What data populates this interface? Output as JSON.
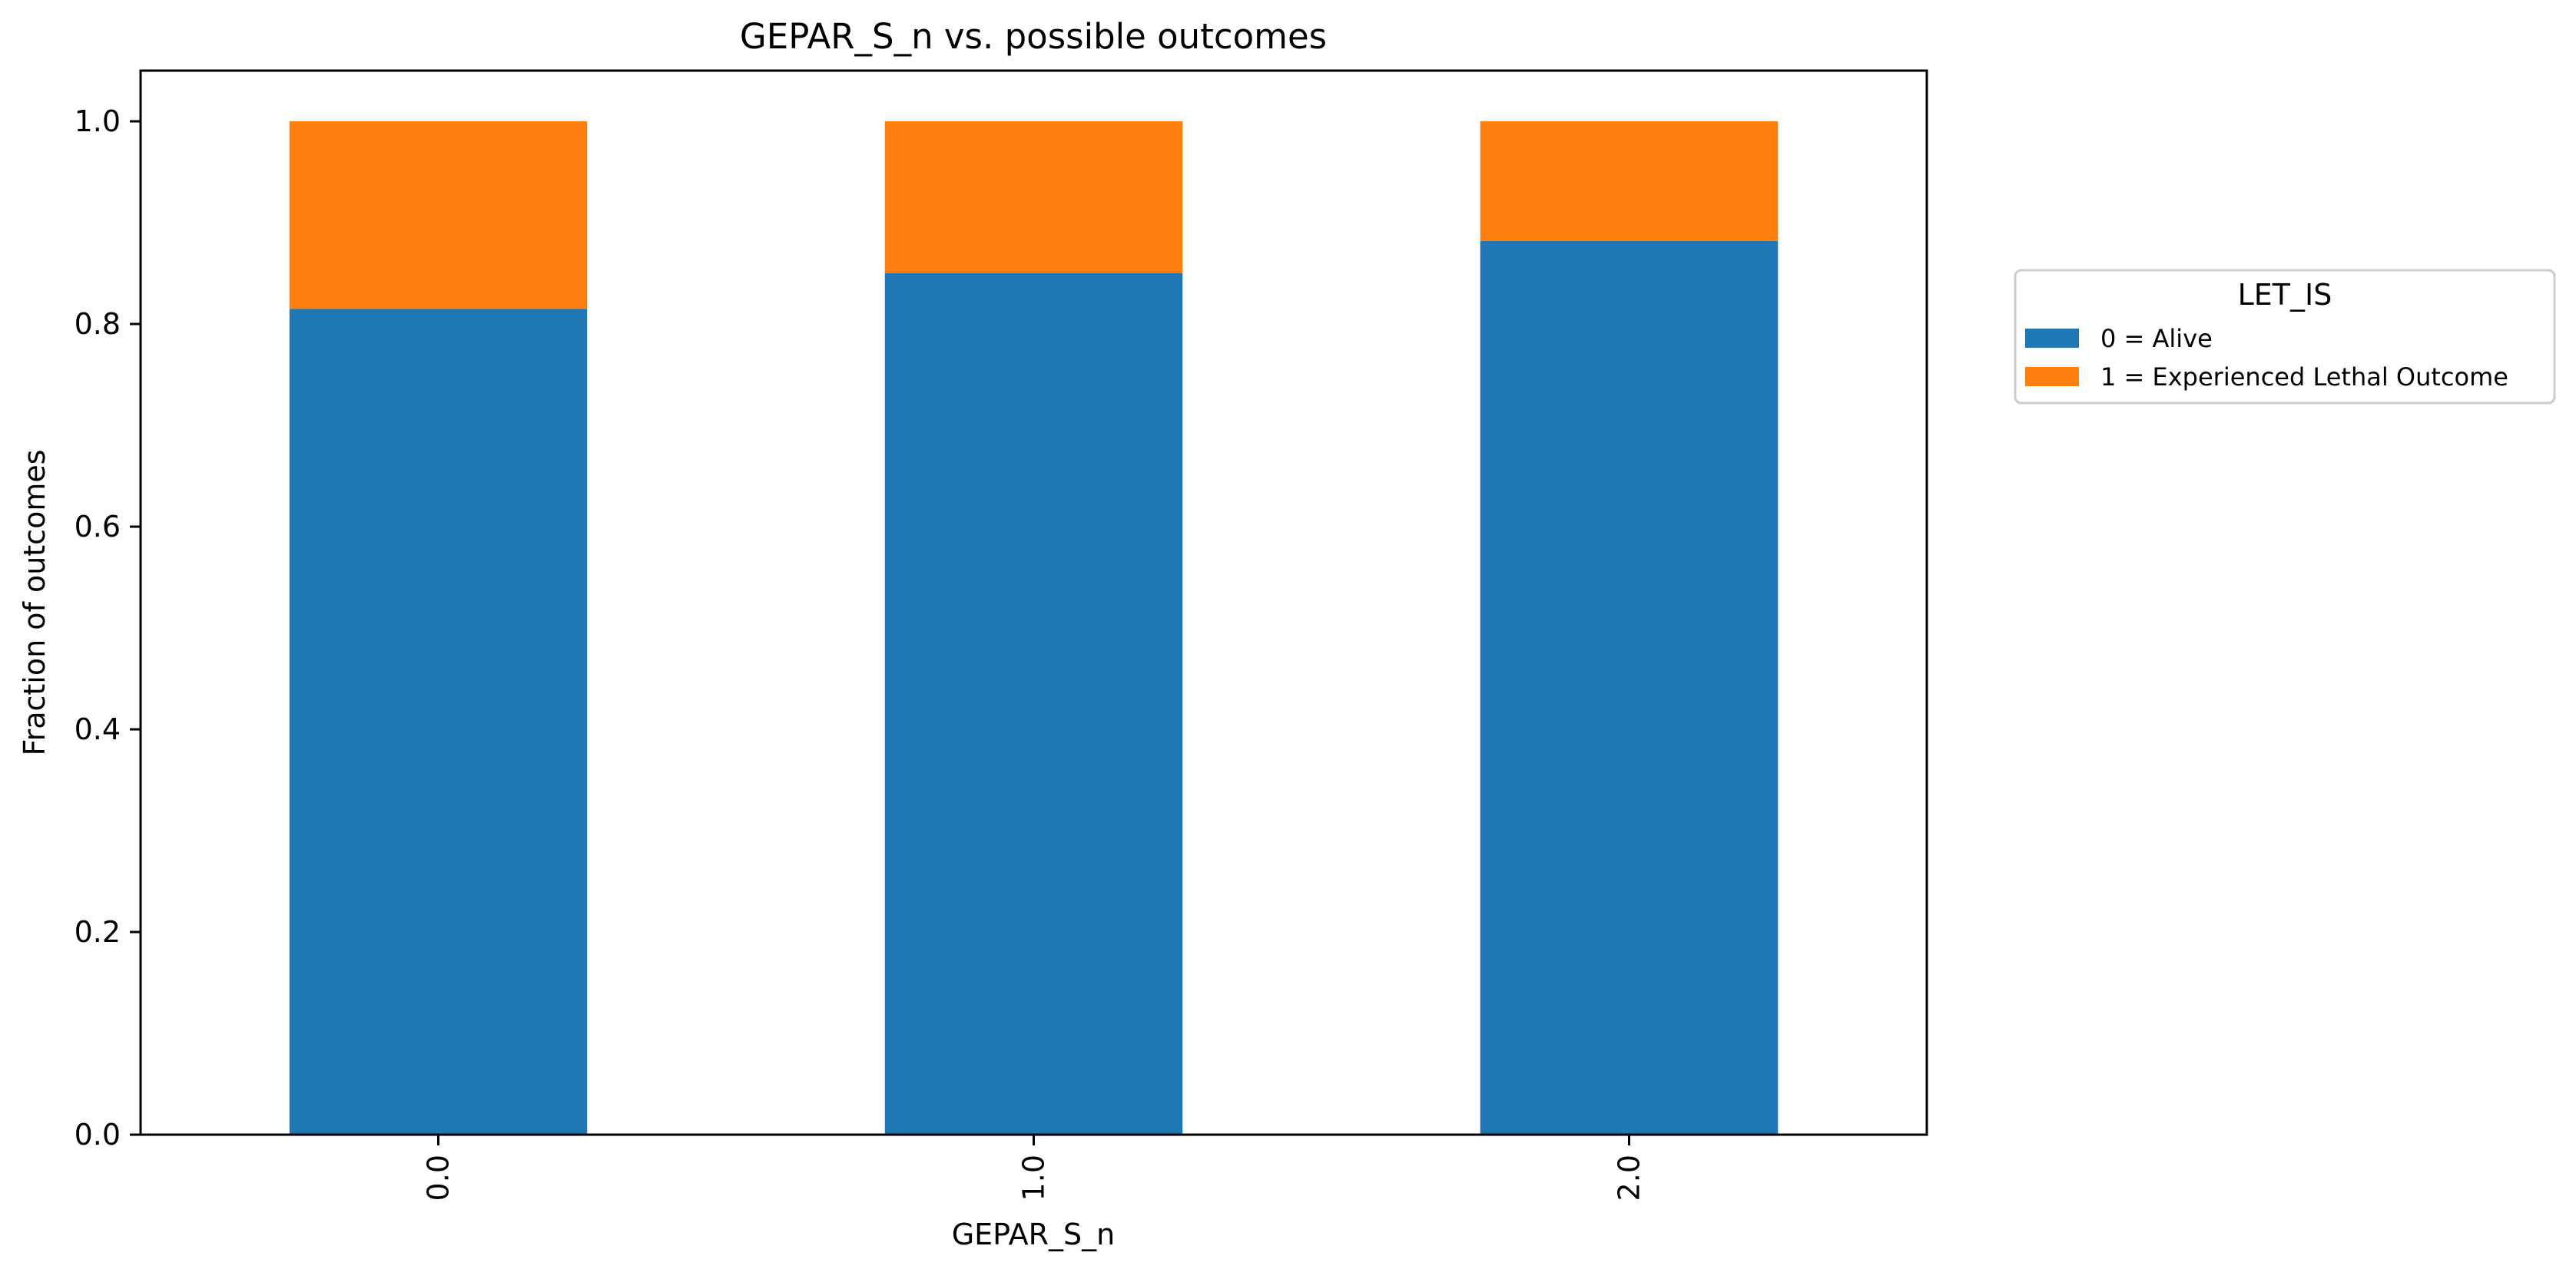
{
  "chart_data": {
    "type": "bar",
    "stacked": true,
    "title": "GEPAR_S_n vs. possible outcomes",
    "xlabel": "GEPAR_S_n",
    "ylabel": "Fraction of outcomes",
    "categories": [
      "0.0",
      "1.0",
      "2.0"
    ],
    "ylim": [
      0,
      1.05
    ],
    "yticks": [
      "0.0",
      "0.2",
      "0.4",
      "0.6",
      "0.8",
      "1.0"
    ],
    "grid": false,
    "legend": {
      "title": "LET_IS",
      "placement": "right, outside plot area"
    },
    "series": [
      {
        "name": "0 = Alive",
        "color": "#1f77b4",
        "values": [
          0.815,
          0.85,
          0.882
        ]
      },
      {
        "name": "1 = Experienced Lethal Outcome",
        "color": "#ff7f0e",
        "values": [
          0.185,
          0.15,
          0.118
        ]
      }
    ]
  }
}
